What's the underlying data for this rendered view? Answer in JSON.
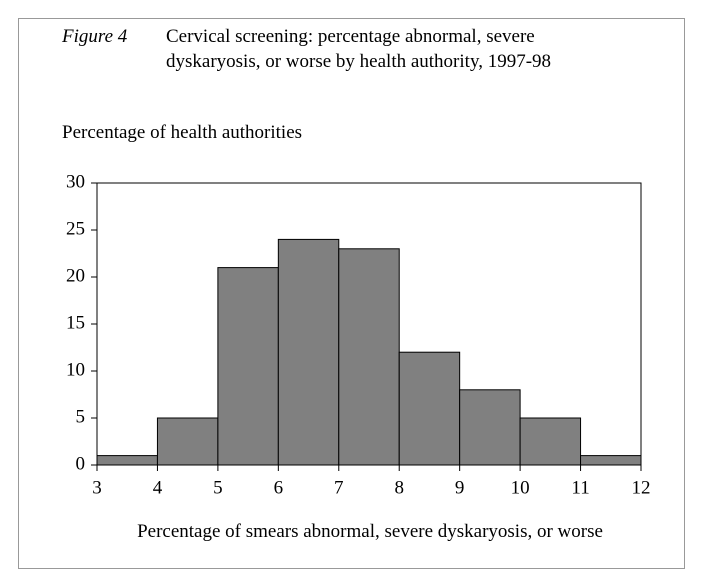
{
  "chart_data": {
    "type": "histogram",
    "figure_label": "Figure 4",
    "title": "Cervical screening: percentage abnormal, severe dyskaryosis, or worse by health authority, 1997-98",
    "ylabel": "Percentage of health authorities",
    "xlabel": "Percentage of smears abnormal, severe dyskaryosis, or worse",
    "bins": [
      3,
      4,
      5,
      6,
      7,
      8,
      9,
      10,
      11,
      12
    ],
    "values": [
      1,
      5,
      21,
      24,
      23,
      12,
      8,
      5,
      1
    ],
    "color": "#808080",
    "xlim": [
      3,
      12
    ],
    "xticks": [
      3,
      4,
      5,
      6,
      7,
      8,
      9,
      10,
      11,
      12
    ],
    "ylim": [
      0,
      30
    ],
    "yticks": [
      0,
      5,
      10,
      15,
      20,
      25,
      30
    ]
  }
}
